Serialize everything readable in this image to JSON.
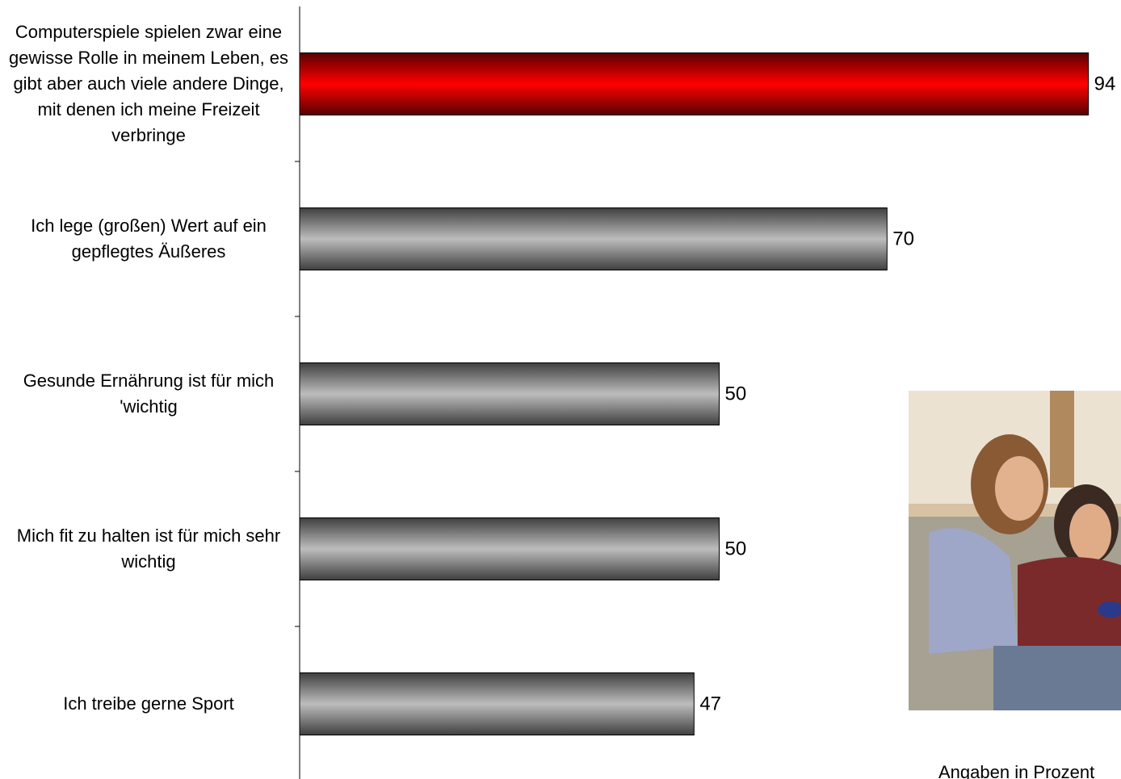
{
  "chart_data": {
    "type": "hbar",
    "categories": [
      "Computerspiele spielen zwar eine gewisse Rolle in meinem Leben, es gibt aber auch viele andere Dinge, mit denen ich meine Freizeit verbringe",
      "Ich lege (großen) Wert auf ein gepflegtes Äußeres",
      "Gesunde Ernährung ist für mich 'wichtig",
      "Mich fit zu halten ist für mich sehr wichtig",
      "Ich treibe gerne Sport"
    ],
    "values": [
      94,
      70,
      50,
      50,
      47
    ],
    "colors": [
      "#ff0000",
      "#b4b4b4",
      "#b4b4b4",
      "#b4b4b4",
      "#b4b4b4"
    ],
    "xlim": [
      0,
      100
    ],
    "note": "Angaben in Prozent"
  }
}
